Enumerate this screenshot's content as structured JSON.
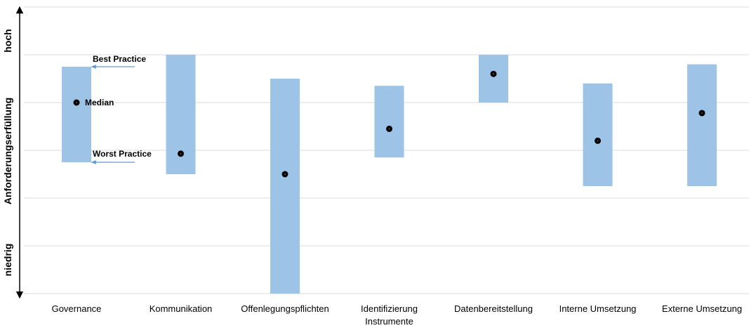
{
  "chart_data": {
    "type": "range-bar",
    "ylabel": "Anforderungserfüllung",
    "y_end_labels": {
      "top": "hoch",
      "bottom": "niedrig"
    },
    "ylim": [
      0,
      6
    ],
    "grid": true,
    "categories": [
      [
        "Governance"
      ],
      [
        "Kommunikation"
      ],
      [
        "Offenlegungspflichten"
      ],
      [
        "Identifizierung",
        "Instrumente"
      ],
      [
        "Datenbereitstellung"
      ],
      [
        "Interne Umsetzung"
      ],
      [
        "Externe Umsetzung"
      ]
    ],
    "series": [
      {
        "name": "Best Practice",
        "values": [
          4.75,
          5.0,
          4.5,
          4.35,
          5.0,
          4.4,
          4.8
        ]
      },
      {
        "name": "Worst Practice",
        "values": [
          2.75,
          2.5,
          0.0,
          2.85,
          4.0,
          2.25,
          2.25
        ]
      },
      {
        "name": "Median",
        "values": [
          4.0,
          2.93,
          2.5,
          3.45,
          4.6,
          3.2,
          3.78
        ]
      }
    ],
    "annotations": [
      {
        "text": "Best Practice",
        "category": "Governance",
        "target": "Best Practice"
      },
      {
        "text": "Median",
        "category": "Governance",
        "target": "Median"
      },
      {
        "text": "Worst Practice",
        "category": "Governance",
        "target": "Worst Practice"
      }
    ],
    "colors": {
      "range": "#9DC3E6",
      "median": "#000000",
      "grid": "#D9D9D9",
      "arrow": "#5B9BD5"
    }
  }
}
